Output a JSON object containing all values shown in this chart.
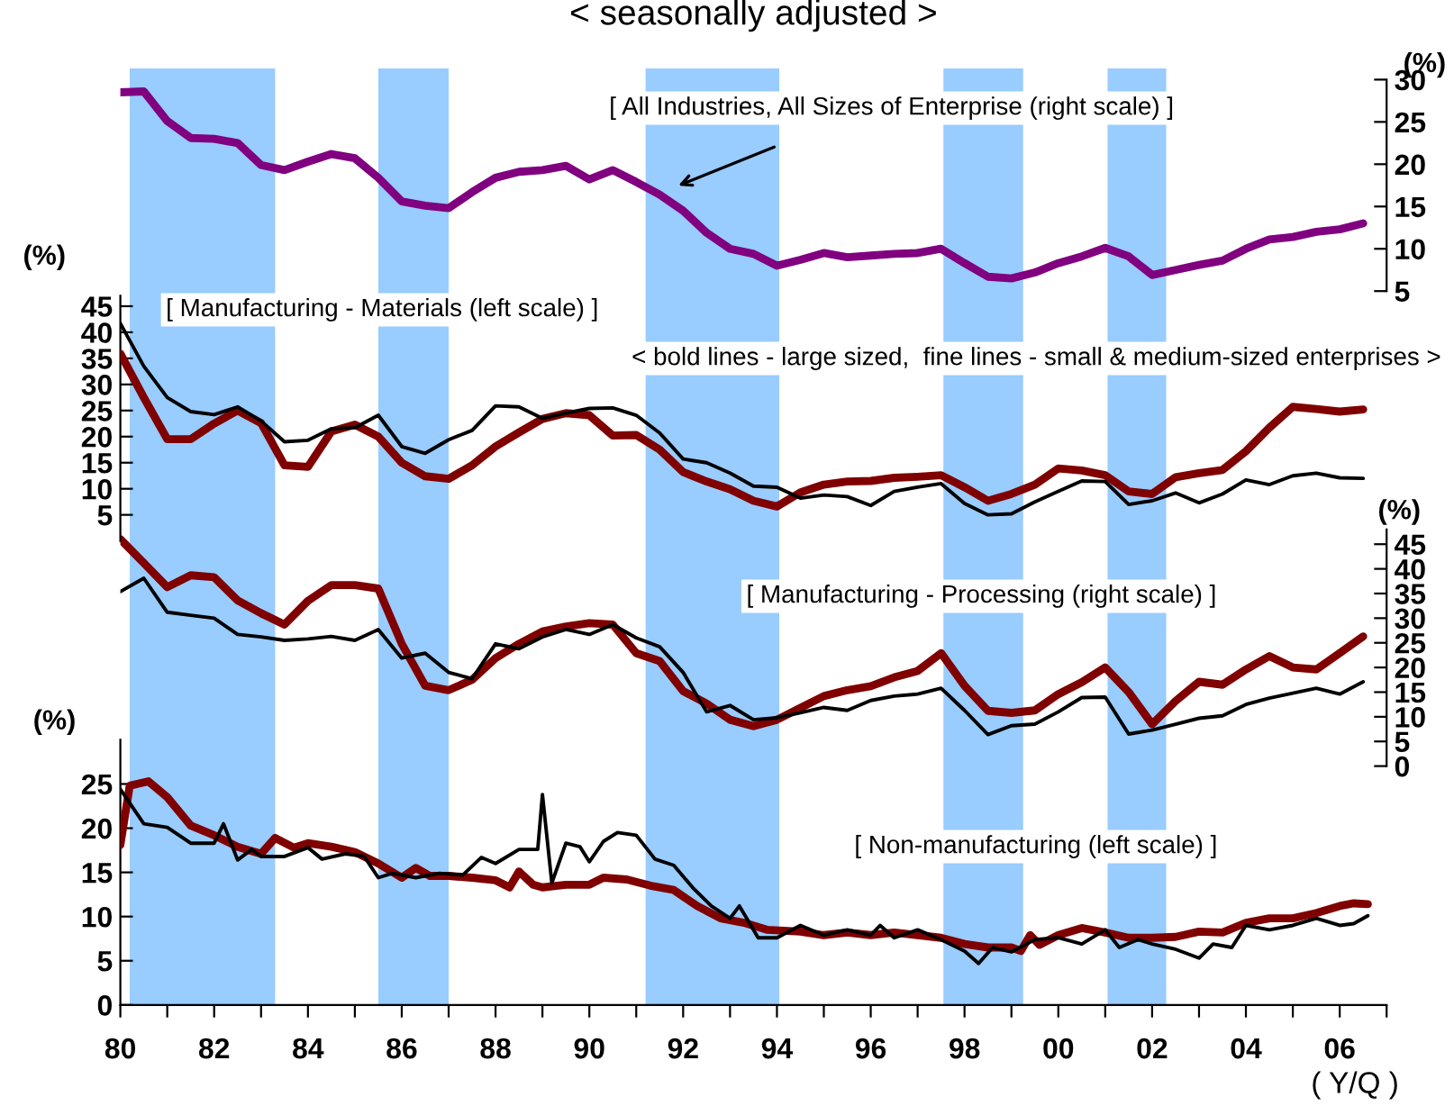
{
  "chart_data": [
    {
      "type": "line",
      "title": "< seasonally adjusted >",
      "ylabel": "(%)",
      "ylim": [
        5,
        30
      ],
      "yticks": [
        5,
        10,
        15,
        20,
        25,
        30
      ],
      "tick_labels": "y",
      "grid": false,
      "annotations": [
        "[ All Industries, All Sizes of Enterprise (right scale) ]"
      ],
      "categories": [
        null,
        null,
        null,
        null,
        null,
        null,
        null,
        null,
        null,
        null,
        null,
        null,
        null,
        null,
        null,
        null,
        null,
        null,
        null,
        null,
        null,
        null,
        null,
        null,
        null,
        null,
        null,
        null,
        null,
        null,
        null,
        null,
        null,
        null,
        null,
        null,
        null,
        null,
        null,
        null,
        null,
        null,
        null,
        null,
        null,
        null,
        null,
        null,
        null,
        null,
        null,
        null,
        null,
        null
      ],
      "series": [
        {
          "color": "#800080",
          "values": [
            28.5,
            28.6,
            25.1,
            23.1,
            23.0,
            22.5,
            19.9,
            19.3,
            20.3,
            21.2,
            20.7,
            18.4,
            15.6,
            15.1,
            14.8,
            16.7,
            18.4,
            19.1,
            19.3,
            19.8,
            18.2,
            19.3,
            17.9,
            16.4,
            14.5,
            11.9,
            10.0,
            9.4,
            8.0,
            8.7,
            9.5,
            9.0,
            9.2,
            9.4,
            9.5,
            10.0,
            8.3,
            6.7,
            6.5,
            7.2,
            8.3,
            9.1,
            10.1,
            9.1,
            6.9,
            7.5,
            8.1,
            8.6,
            10.0,
            11.1,
            11.4,
            12.0,
            12.3,
            13.0
          ]
        }
      ]
    },
    {
      "type": "line",
      "ylabel": "(%)",
      "ylim": [
        0,
        47
      ],
      "yticks": [
        5,
        10,
        15,
        20,
        25,
        30,
        35,
        40,
        45
      ],
      "tick_labels": "y",
      "grid": false,
      "annotations": [
        "[ Manufacturing - Materials (left scale) ]",
        "< bold lines - large sized,  fine lines - small & medium-sized enterprises >"
      ],
      "categories": [
        null,
        null,
        null,
        null,
        null,
        null,
        null,
        null,
        null,
        null,
        null,
        null,
        null,
        null,
        null,
        null,
        null,
        null,
        null,
        null,
        null,
        null,
        null,
        null,
        null,
        null,
        null,
        null,
        null,
        null,
        null,
        null,
        null,
        null,
        null,
        null,
        null,
        null,
        null,
        null,
        null,
        null,
        null,
        null,
        null,
        null,
        null,
        null,
        null,
        null,
        null,
        null,
        null,
        null
      ],
      "series": [
        {
          "color": "#800000",
          "values": [
            35.9,
            27.5,
            19.5,
            19.5,
            22.5,
            25.0,
            22.6,
            14.5,
            14.2,
            21.0,
            22.3,
            20.0,
            15.0,
            12.4,
            11.9,
            14.5,
            18.1,
            20.8,
            23.4,
            24.5,
            24.1,
            20.2,
            20.3,
            17.5,
            13.2,
            11.4,
            9.9,
            7.7,
            6.6,
            9.3,
            10.8,
            11.4,
            11.5,
            12.1,
            12.3,
            12.6,
            10.3,
            7.7,
            9.0,
            10.8,
            13.9,
            13.5,
            12.6,
            9.5,
            9.0,
            12.2,
            13.0,
            13.6,
            17.2,
            21.7,
            25.7,
            25.3,
            24.8,
            25.2
          ]
        },
        {
          "color": "#000000",
          "values": [
            41.7,
            33.5,
            27.5,
            24.8,
            24.2,
            25.7,
            23.0,
            19.0,
            19.3,
            21.5,
            21.7,
            24.1,
            18.1,
            16.8,
            19.4,
            21.2,
            25.9,
            25.7,
            23.5,
            24.5,
            25.4,
            25.5,
            24.1,
            20.7,
            15.7,
            15.0,
            13.0,
            10.5,
            10.3,
            8.2,
            8.8,
            8.5,
            6.8,
            9.5,
            10.3,
            11.0,
            7.2,
            5.0,
            5.2,
            7.5,
            9.5,
            11.5,
            11.4,
            7.0,
            7.7,
            9.2,
            7.3,
            9.0,
            11.7,
            10.8,
            12.5,
            13.0,
            12.1,
            12.0
          ]
        }
      ]
    },
    {
      "type": "line",
      "ylabel": "(%)",
      "ylim": [
        0,
        48
      ],
      "yticks": [
        0,
        5,
        10,
        15,
        20,
        25,
        30,
        35,
        40,
        45
      ],
      "tick_labels": "y",
      "grid": false,
      "annotations": [
        "[ Manufacturing - Processing (right scale) ]"
      ],
      "categories": [
        null,
        null,
        null,
        null,
        null,
        null,
        null,
        null,
        null,
        null,
        null,
        null,
        null,
        null,
        null,
        null,
        null,
        null,
        null,
        null,
        null,
        null,
        null,
        null,
        null,
        null,
        null,
        null,
        null,
        null,
        null,
        null,
        null,
        null,
        null,
        null,
        null,
        null,
        null,
        null,
        null,
        null,
        null,
        null,
        null,
        null,
        null,
        null,
        null,
        null,
        null,
        null,
        null,
        null
      ],
      "series": [
        {
          "color": "#800000",
          "values": [
            46.0,
            41.2,
            36.3,
            38.7,
            38.3,
            33.6,
            31.0,
            28.7,
            33.5,
            36.7,
            36.7,
            36.0,
            24.8,
            16.3,
            15.4,
            17.5,
            21.9,
            24.8,
            27.3,
            28.3,
            29.0,
            28.7,
            22.9,
            21.3,
            15.2,
            12.7,
            9.4,
            8.1,
            9.4,
            11.8,
            14.2,
            15.4,
            16.2,
            18.0,
            19.3,
            22.9,
            16.3,
            11.2,
            10.8,
            11.3,
            14.6,
            17.0,
            20.0,
            15.0,
            8.5,
            13.2,
            17.1,
            16.5,
            19.6,
            22.3,
            20.0,
            19.6,
            22.9,
            26.3
          ]
        },
        {
          "color": "#000000",
          "values": [
            35.4,
            38.1,
            31.2,
            30.6,
            30.0,
            26.7,
            26.2,
            25.5,
            25.8,
            26.3,
            25.5,
            27.7,
            21.9,
            22.9,
            19.0,
            17.7,
            24.8,
            23.8,
            26.2,
            27.7,
            26.7,
            28.7,
            26.0,
            24.2,
            19.0,
            11.0,
            12.3,
            9.4,
            9.8,
            10.8,
            11.9,
            11.3,
            13.3,
            14.2,
            14.6,
            15.8,
            11.3,
            6.4,
            8.2,
            8.5,
            11.0,
            13.9,
            14.0,
            6.5,
            7.3,
            8.5,
            9.7,
            10.2,
            12.5,
            13.8,
            14.8,
            15.8,
            14.6,
            17.1
          ]
        }
      ]
    },
    {
      "type": "line",
      "ylabel": "(%)",
      "xlabel": "( Y/Q )",
      "xlim": [
        1980,
        2007
      ],
      "ylim": [
        0,
        30
      ],
      "yticks": [
        0,
        5,
        10,
        15,
        20,
        25
      ],
      "xticks": [
        {
          "value": 1980,
          "label": "80"
        },
        {
          "value": 1981,
          "label": null
        },
        {
          "value": 1982,
          "label": "82"
        },
        {
          "value": 1983,
          "label": null
        },
        {
          "value": 1984,
          "label": "84"
        },
        {
          "value": 1985,
          "label": null
        },
        {
          "value": 1986,
          "label": "86"
        },
        {
          "value": 1987,
          "label": null
        },
        {
          "value": 1988,
          "label": "88"
        },
        {
          "value": 1989,
          "label": null
        },
        {
          "value": 1990,
          "label": "90"
        },
        {
          "value": 1991,
          "label": null
        },
        {
          "value": 1992,
          "label": "92"
        },
        {
          "value": 1993,
          "label": null
        },
        {
          "value": 1994,
          "label": "94"
        },
        {
          "value": 1995,
          "label": null
        },
        {
          "value": 1996,
          "label": "96"
        },
        {
          "value": 1997,
          "label": null
        },
        {
          "value": 1998,
          "label": "98"
        },
        {
          "value": 1999,
          "label": null
        },
        {
          "value": 2000,
          "label": "00"
        },
        {
          "value": 2001,
          "label": null
        },
        {
          "value": 2002,
          "label": "02"
        },
        {
          "value": 2003,
          "label": null
        },
        {
          "value": 2004,
          "label": "04"
        },
        {
          "value": 2005,
          "label": null
        },
        {
          "value": 2006,
          "label": "06"
        },
        {
          "value": 2007,
          "label": null
        }
      ],
      "grid": false,
      "annotations": [
        "[ Non-manufacturing (left scale) ]"
      ],
      "bands": [
        {
          "axis": "x",
          "from": 1980.2,
          "to": 1983.3,
          "color": "#99ccff"
        },
        {
          "axis": "x",
          "from": 1985.5,
          "to": 1987.0,
          "color": "#99ccff"
        },
        {
          "axis": "x",
          "from": 1991.2,
          "to": 1994.05,
          "color": "#99ccff"
        },
        {
          "axis": "x",
          "from": 1997.55,
          "to": 1999.25,
          "color": "#99ccff"
        },
        {
          "axis": "x",
          "from": 2001.05,
          "to": 2002.3,
          "color": "#99ccff"
        }
      ],
      "series": [
        {
          "color": "#800000",
          "x": [
            1980.0,
            1980.2,
            1980.6,
            1981.0,
            1981.5,
            1982.0,
            1982.5,
            1983.0,
            1983.3,
            1983.7,
            1984.0,
            1984.5,
            1985.0,
            1985.5,
            1986.0,
            1986.3,
            1986.6,
            1987.0,
            1987.5,
            1988.0,
            1988.3,
            1988.5,
            1988.8,
            1989.0,
            1989.5,
            1990.0,
            1990.3,
            1990.8,
            1991.3,
            1991.8,
            1992.3,
            1992.8,
            1993.3,
            1993.8,
            1994.5,
            1995.0,
            1995.5,
            1996.0,
            1996.5,
            1997.0,
            1997.5,
            1998.0,
            1998.5,
            1999.0,
            1999.2,
            1999.4,
            1999.6,
            2000.0,
            2000.5,
            2001.0,
            2001.5,
            2002.0,
            2002.5,
            2003.0,
            2003.5,
            2004.0,
            2004.5,
            2005.0,
            2005.5,
            2006.0,
            2006.3,
            2006.6
          ],
          "values": [
            18.1,
            24.8,
            25.3,
            23.5,
            20.3,
            19.2,
            17.9,
            17.1,
            18.9,
            17.8,
            18.3,
            17.9,
            17.3,
            16.0,
            14.4,
            15.5,
            14.6,
            14.6,
            14.4,
            14.1,
            13.3,
            15.1,
            13.6,
            13.3,
            13.6,
            13.6,
            14.4,
            14.2,
            13.5,
            13.0,
            11.2,
            9.8,
            9.3,
            8.5,
            8.3,
            7.9,
            8.2,
            7.9,
            8.2,
            7.9,
            7.6,
            6.9,
            6.5,
            6.5,
            6.1,
            7.9,
            6.8,
            7.9,
            8.7,
            8.2,
            7.6,
            7.6,
            7.7,
            8.3,
            8.2,
            9.3,
            9.8,
            9.8,
            10.4,
            11.2,
            11.5,
            11.4
          ]
        },
        {
          "color": "#000000",
          "x": [
            1980.0,
            1980.5,
            1981.0,
            1981.5,
            1982.0,
            1982.2,
            1982.5,
            1982.8,
            1983.0,
            1983.5,
            1984.0,
            1984.3,
            1984.8,
            1985.2,
            1985.5,
            1985.8,
            1986.3,
            1986.8,
            1987.3,
            1987.7,
            1988.0,
            1988.5,
            1988.9,
            1989.0,
            1989.2,
            1989.5,
            1989.8,
            1990.0,
            1990.3,
            1990.6,
            1991.0,
            1991.4,
            1991.8,
            1992.2,
            1992.6,
            1993.0,
            1993.2,
            1993.6,
            1994.0,
            1994.5,
            1995.0,
            1995.5,
            1996.0,
            1996.2,
            1996.5,
            1997.0,
            1997.5,
            1998.0,
            1998.3,
            1998.6,
            1999.0,
            1999.5,
            2000.0,
            2000.5,
            2001.0,
            2001.3,
            2001.7,
            2002.0,
            2002.5,
            2003.0,
            2003.3,
            2003.7,
            2004.0,
            2004.5,
            2005.0,
            2005.5,
            2006.0,
            2006.3,
            2006.6
          ],
          "values": [
            24.4,
            20.5,
            20.1,
            18.3,
            18.3,
            20.5,
            16.4,
            17.6,
            16.8,
            16.8,
            17.8,
            16.5,
            17.1,
            16.8,
            14.4,
            14.9,
            14.4,
            14.9,
            14.7,
            16.7,
            16.0,
            17.6,
            17.6,
            23.8,
            13.8,
            18.3,
            17.9,
            16.2,
            18.5,
            19.5,
            19.2,
            16.5,
            15.8,
            13.3,
            11.2,
            9.8,
            11.2,
            7.6,
            7.6,
            9.0,
            7.9,
            8.5,
            7.9,
            9.0,
            7.6,
            8.5,
            7.4,
            6.1,
            4.7,
            6.5,
            6.0,
            7.4,
            7.6,
            6.9,
            8.5,
            6.5,
            7.4,
            6.9,
            6.3,
            5.3,
            6.9,
            6.5,
            9.0,
            8.5,
            9.0,
            9.8,
            9.0,
            9.2,
            10.1
          ]
        }
      ]
    }
  ]
}
